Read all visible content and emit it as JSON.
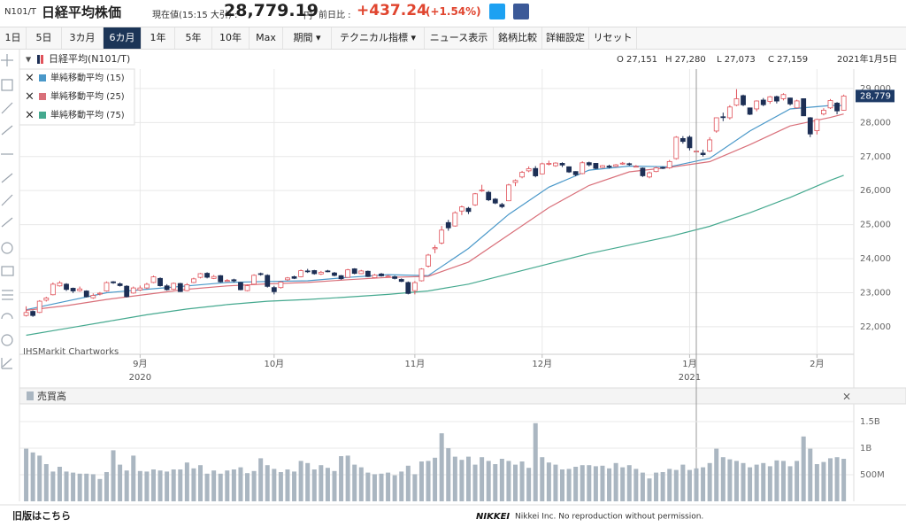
{
  "header": {
    "code": "N101/T",
    "title": "日経平均株価",
    "price_caption": "現在値(15:15 大引) :",
    "price": "28,779.19",
    "unit": "円",
    "change_caption": "前日比 :",
    "change": "+437.24",
    "change_pct": "(+1.54%)"
  },
  "toolbar": {
    "buttons": [
      "1日",
      "5日",
      "3カ月",
      "6カ月",
      "1年",
      "5年",
      "10年",
      "Max",
      "期間 ▾",
      "テクニカル指標 ▾",
      "ニュース表示",
      "銘柄比較",
      "詳細設定",
      "リセット"
    ],
    "active": 3
  },
  "ohlc_bar": {
    "items": [
      "O 27,151",
      "H 27,280",
      "L 27,073",
      "C 27,159"
    ],
    "date": "2021年1月5日"
  },
  "watermark": "IHSMarkit Chartworks",
  "footer": {
    "link": "旧版はこちら",
    "brand": "NIKKEI",
    "notice": "Nikkei Inc. No reproduction without permission."
  },
  "chart_data": [
    {
      "type": "candlestick",
      "candles": {
        "name": "日経平均(N101/T)",
        "up_color": "#e0525a",
        "down_color": "#1d2f55",
        "open": [
          22330,
          22450,
          22420,
          22780,
          22940,
          23200,
          23250,
          23130,
          23060,
          23050,
          22850,
          22960,
          23050,
          23320,
          23260,
          23190,
          22990,
          23080,
          23140,
          23300,
          23420,
          23200,
          23100,
          23270,
          23060,
          23300,
          23450,
          23570,
          23420,
          23500,
          23330,
          23380,
          23300,
          23060,
          23250,
          23560,
          23510,
          23150,
          23150,
          23380,
          23470,
          23470,
          23640,
          23650,
          23550,
          23640,
          23580,
          23500,
          23450,
          23700,
          23560,
          23630,
          23440,
          23550,
          23470,
          23470,
          23390,
          23300,
          23060,
          23350,
          23780,
          24290,
          24460,
          25060,
          24960,
          25400,
          25480,
          25580,
          26000,
          25950,
          25750,
          25590,
          25700,
          26240,
          26400,
          26580,
          26650,
          26490,
          26780,
          26730,
          26800,
          26700,
          26560,
          26500,
          26820,
          26800,
          26680,
          26720,
          26710,
          26790,
          26790,
          26710,
          26660,
          26400,
          26560,
          26680,
          26670,
          26940,
          27530,
          27570,
          27151,
          27100,
          27160,
          27750,
          28170,
          28140,
          28510,
          28790,
          28430,
          28400,
          28660,
          28620,
          28760,
          28700,
          28720,
          28430,
          28700,
          28140,
          27760,
          28250,
          28430,
          28570,
          28360
        ],
        "high": [
          22600,
          22480,
          22780,
          22880,
          23300,
          23340,
          23280,
          23150,
          23180,
          23070,
          22980,
          23020,
          23330,
          23340,
          23300,
          23220,
          23180,
          23210,
          23290,
          23500,
          23450,
          23250,
          23300,
          23290,
          23280,
          23440,
          23580,
          23600,
          23520,
          23520,
          23400,
          23410,
          23320,
          23240,
          23540,
          23590,
          23540,
          23200,
          23340,
          23460,
          23500,
          23680,
          23700,
          23670,
          23640,
          23670,
          23610,
          23520,
          23700,
          23720,
          23670,
          23650,
          23550,
          23580,
          23520,
          23500,
          23420,
          23330,
          23340,
          23720,
          24140,
          24400,
          24960,
          25140,
          25390,
          25560,
          25520,
          25930,
          26170,
          25990,
          25780,
          25640,
          26200,
          26330,
          26580,
          26710,
          26720,
          26820,
          26880,
          26830,
          26830,
          26710,
          26570,
          26860,
          26850,
          26810,
          26750,
          26760,
          26780,
          26840,
          26820,
          26750,
          26680,
          26560,
          26700,
          26710,
          26900,
          27600,
          27600,
          27620,
          27280,
          27200,
          27570,
          28150,
          28290,
          28510,
          28980,
          28820,
          28440,
          28650,
          28720,
          28780,
          28790,
          28860,
          28730,
          28670,
          28710,
          28160,
          28110,
          28420,
          28690,
          28600,
          28820
        ],
        "low": [
          22300,
          22290,
          22400,
          22740,
          22920,
          23180,
          23050,
          22990,
          23030,
          22860,
          22820,
          22920,
          23030,
          23260,
          23180,
          22860,
          22970,
          23050,
          23110,
          23280,
          23180,
          23060,
          23080,
          23020,
          23040,
          23280,
          23420,
          23420,
          23400,
          23300,
          23320,
          23300,
          23070,
          23040,
          23230,
          23500,
          23150,
          22950,
          23120,
          23350,
          23400,
          23450,
          23580,
          23530,
          23520,
          23600,
          23480,
          23380,
          23440,
          23540,
          23550,
          23460,
          23420,
          23470,
          23440,
          23390,
          23310,
          22950,
          22950,
          23330,
          23740,
          24160,
          24420,
          24820,
          24940,
          25280,
          25310,
          25550,
          25960,
          25690,
          25600,
          25480,
          25690,
          26130,
          26360,
          26540,
          26390,
          26480,
          26740,
          26700,
          26690,
          26520,
          26420,
          26480,
          26710,
          26630,
          26660,
          26650,
          26690,
          26760,
          26730,
          26690,
          26400,
          26360,
          26540,
          26630,
          26640,
          26910,
          27380,
          27180,
          27073,
          27000,
          27130,
          27700,
          28040,
          28090,
          28480,
          28480,
          28220,
          28330,
          28480,
          28550,
          28560,
          28650,
          28500,
          28410,
          28190,
          27570,
          27650,
          28210,
          28400,
          28240,
          28350
        ],
        "close": [
          22418,
          22329,
          22750,
          22843,
          23249,
          23289,
          23096,
          23051,
          23110,
          22880,
          22920,
          22985,
          23296,
          23290,
          23208,
          22882,
          23139,
          23138,
          23247,
          23465,
          23205,
          23089,
          23274,
          23032,
          23235,
          23406,
          23559,
          23454,
          23475,
          23319,
          23360,
          23346,
          23087,
          23204,
          23511,
          23539,
          23185,
          23029,
          23312,
          23433,
          23422,
          23647,
          23619,
          23558,
          23601,
          23626,
          23507,
          23410,
          23671,
          23567,
          23639,
          23474,
          23516,
          23494,
          23485,
          23418,
          23331,
          22977,
          23295,
          23695,
          24105,
          24325,
          24839,
          24905,
          25349,
          25520,
          25385,
          25906,
          26014,
          25728,
          25634,
          25527,
          26165,
          26296,
          26537,
          26644,
          26433,
          26787,
          26800,
          26809,
          26751,
          26547,
          26467,
          26817,
          26756,
          26652,
          26732,
          26687,
          26757,
          26806,
          26763,
          26714,
          26436,
          26524,
          26668,
          26656,
          26854,
          27568,
          27444,
          27258,
          27159,
          27056,
          27490,
          28139,
          28164,
          28456,
          28698,
          28519,
          28242,
          28633,
          28523,
          28756,
          28631,
          28822,
          28546,
          28635,
          28197,
          27663,
          28091,
          28362,
          28646,
          28341,
          28779
        ]
      },
      "series": [
        {
          "name": "単純移動平均 (15)",
          "color": "#4a98c9",
          "x": [
            0,
            6,
            12,
            18,
            24,
            30,
            36,
            42,
            48,
            54,
            60,
            66,
            72,
            78,
            84,
            90,
            96,
            102,
            108,
            114,
            120,
            122
          ],
          "values": [
            22500,
            22750,
            23000,
            23100,
            23200,
            23300,
            23330,
            23350,
            23450,
            23530,
            23500,
            24300,
            25300,
            26100,
            26600,
            26720,
            26700,
            26950,
            27750,
            28400,
            28500,
            28500
          ]
        },
        {
          "name": "単純移動平均 (25)",
          "color": "#d9707a",
          "x": [
            0,
            6,
            12,
            18,
            24,
            30,
            36,
            42,
            48,
            54,
            60,
            66,
            72,
            78,
            84,
            90,
            96,
            102,
            108,
            114,
            120,
            122
          ],
          "values": [
            22480,
            22620,
            22800,
            22950,
            23100,
            23200,
            23260,
            23300,
            23380,
            23450,
            23480,
            23900,
            24700,
            25500,
            26150,
            26550,
            26680,
            26850,
            27350,
            27900,
            28150,
            28250
          ]
        },
        {
          "name": "単純移動平均 (75)",
          "color": "#45a98f",
          "x": [
            0,
            6,
            12,
            18,
            24,
            30,
            36,
            42,
            48,
            54,
            60,
            66,
            72,
            78,
            84,
            90,
            96,
            102,
            108,
            114,
            120,
            122
          ],
          "values": [
            21750,
            21950,
            22150,
            22350,
            22520,
            22650,
            22750,
            22800,
            22870,
            22950,
            23050,
            23250,
            23550,
            23850,
            24150,
            24400,
            24650,
            24950,
            25350,
            25800,
            26300,
            26450
          ]
        }
      ],
      "last_price": {
        "value": 28779,
        "label": "28,779"
      },
      "crosshair_x": 100,
      "xlim": [
        -1,
        123.5
      ],
      "ylim": [
        21190,
        29570
      ],
      "xticks": [
        {
          "value": 17,
          "label": "9月"
        },
        {
          "value": 37,
          "label": "10月"
        },
        {
          "value": 58,
          "label": "11月"
        },
        {
          "value": 77,
          "label": "12月"
        },
        {
          "value": 99,
          "label": "1月"
        },
        {
          "value": 118,
          "label": "2月"
        }
      ],
      "year_ticks": [
        {
          "value": 17,
          "label": "2020"
        },
        {
          "value": 99,
          "label": "2021"
        }
      ],
      "yticks": [
        {
          "value": 22000,
          "label": "22,000"
        },
        {
          "value": 23000,
          "label": "23,000"
        },
        {
          "value": 24000,
          "label": "24,000"
        },
        {
          "value": 25000,
          "label": "25,000"
        },
        {
          "value": 26000,
          "label": "26,000"
        },
        {
          "value": 27000,
          "label": "27,000"
        },
        {
          "value": 28000,
          "label": "28,000"
        },
        {
          "value": 29000,
          "label": "29,000"
        }
      ],
      "grid": true
    },
    {
      "type": "bar",
      "series": [
        {
          "name": "売買高",
          "color": "#aab6c1",
          "values": [
            990,
            920,
            860,
            700,
            560,
            650,
            560,
            540,
            520,
            520,
            510,
            420,
            550,
            960,
            690,
            580,
            860,
            570,
            560,
            600,
            580,
            560,
            600,
            600,
            730,
            620,
            680,
            520,
            580,
            520,
            580,
            600,
            640,
            530,
            570,
            810,
            680,
            610,
            550,
            600,
            560,
            760,
            720,
            600,
            680,
            630,
            570,
            850,
            860,
            690,
            640,
            540,
            510,
            520,
            540,
            490,
            560,
            670,
            510,
            750,
            760,
            820,
            1280,
            1000,
            840,
            780,
            840,
            690,
            830,
            760,
            700,
            800,
            760,
            690,
            750,
            630,
            1470,
            830,
            730,
            690,
            600,
            610,
            650,
            680,
            680,
            660,
            670,
            620,
            720,
            640,
            680,
            610,
            540,
            430,
            540,
            550,
            610,
            590,
            690,
            590,
            620,
            640,
            720,
            990,
            830,
            790,
            760,
            720,
            640,
            690,
            720,
            660,
            770,
            760,
            660,
            760,
            1220,
            990,
            700,
            740,
            810,
            830,
            800
          ]
        }
      ],
      "xlim": [
        -1,
        123.5
      ],
      "ylim": [
        0,
        1800
      ],
      "yticks": [
        {
          "value": 500,
          "label": "500M"
        },
        {
          "value": 1000,
          "label": "1B"
        },
        {
          "value": 1500,
          "label": "1.5B"
        }
      ],
      "grid": true
    }
  ]
}
